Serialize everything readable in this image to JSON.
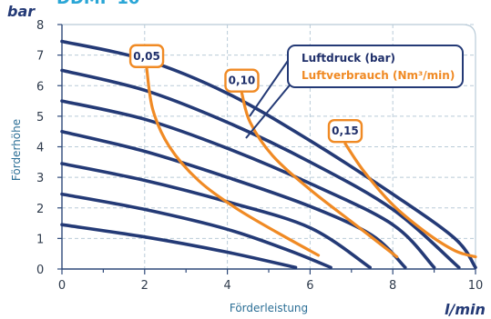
{
  "chart_data": {
    "type": "line",
    "title": "DDMF 10",
    "xlabel": "Förderleistung",
    "ylabel": "Förderhöhe",
    "x_unit": "l/min",
    "y_unit": "bar",
    "xlim": [
      0,
      10
    ],
    "ylim": [
      0,
      8
    ],
    "x_ticks": [
      "0",
      "2",
      "4",
      "6",
      "8",
      "10"
    ],
    "y_ticks": [
      "0",
      "1",
      "2",
      "3",
      "4",
      "5",
      "6",
      "7",
      "8"
    ],
    "grid": true,
    "colors": {
      "pressure": "#243a76",
      "air": "#f08a24",
      "grid": "#b9cbd8",
      "title": "#2aa6d6"
    },
    "legend": {
      "position": "top-right",
      "items": [
        "Luftdruck (bar)",
        "Luftverbrauch (Nm³/min)"
      ]
    },
    "pressure_series": [
      {
        "points": [
          [
            0,
            7.45
          ],
          [
            2,
            6.85
          ],
          [
            4,
            5.75
          ],
          [
            6,
            4.2
          ],
          [
            8,
            2.45
          ],
          [
            9.5,
            1.0
          ],
          [
            10,
            0.05
          ]
        ]
      },
      {
        "points": [
          [
            0,
            6.5
          ],
          [
            2,
            5.85
          ],
          [
            4,
            4.8
          ],
          [
            6,
            3.5
          ],
          [
            8,
            1.95
          ],
          [
            9.6,
            0.05
          ]
        ]
      },
      {
        "points": [
          [
            0,
            5.5
          ],
          [
            2,
            4.9
          ],
          [
            4,
            3.95
          ],
          [
            6,
            2.8
          ],
          [
            8,
            1.45
          ],
          [
            9.0,
            0.05
          ]
        ]
      },
      {
        "points": [
          [
            0,
            4.5
          ],
          [
            2,
            3.85
          ],
          [
            4,
            3.0
          ],
          [
            6,
            2.05
          ],
          [
            7.5,
            1.1
          ],
          [
            8.3,
            0.05
          ]
        ]
      },
      {
        "points": [
          [
            0,
            3.45
          ],
          [
            2,
            2.9
          ],
          [
            4,
            2.2
          ],
          [
            6,
            1.35
          ],
          [
            7.45,
            0.05
          ]
        ]
      },
      {
        "points": [
          [
            0,
            2.45
          ],
          [
            2,
            1.95
          ],
          [
            4,
            1.3
          ],
          [
            5.5,
            0.6
          ],
          [
            6.5,
            0.05
          ]
        ]
      },
      {
        "points": [
          [
            0,
            1.45
          ],
          [
            2,
            1.05
          ],
          [
            4,
            0.55
          ],
          [
            5.65,
            0.05
          ]
        ]
      }
    ],
    "air_series": [
      {
        "label": "0,05",
        "points": [
          [
            2.05,
            6.55
          ],
          [
            2.2,
            5.2
          ],
          [
            2.6,
            4.0
          ],
          [
            3.3,
            2.9
          ],
          [
            4.2,
            2.0
          ],
          [
            5.2,
            1.2
          ],
          [
            6.2,
            0.45
          ]
        ]
      },
      {
        "label": "0,10",
        "points": [
          [
            4.35,
            5.75
          ],
          [
            4.55,
            4.8
          ],
          [
            5.1,
            3.7
          ],
          [
            6.0,
            2.6
          ],
          [
            7.0,
            1.55
          ],
          [
            8.1,
            0.4
          ]
        ]
      },
      {
        "label": "0,15",
        "points": [
          [
            6.85,
            4.1
          ],
          [
            7.3,
            3.2
          ],
          [
            8.0,
            2.1
          ],
          [
            8.8,
            1.2
          ],
          [
            9.5,
            0.6
          ],
          [
            10.0,
            0.4
          ]
        ]
      }
    ]
  }
}
